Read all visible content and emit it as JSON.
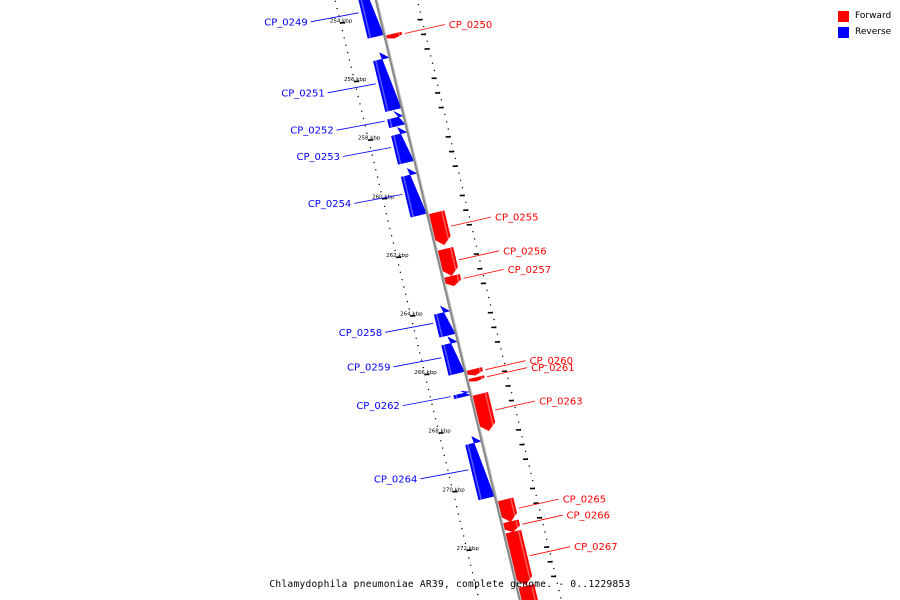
{
  "caption": "Chlamydophila pneumoniae AR39, complete genome. - 0..1229853",
  "legend": [
    {
      "label": "Forward",
      "color": "#ff0000"
    },
    {
      "label": "Reverse",
      "color": "#0000ff"
    }
  ],
  "axis": {
    "start_kbp": 253,
    "end_kbp": 274.3,
    "tick_labels": [
      {
        "kbp": 254,
        "label": "254 kbp"
      },
      {
        "kbp": 256,
        "label": "256 kbp"
      },
      {
        "kbp": 258,
        "label": "258 kbp"
      },
      {
        "kbp": 260,
        "label": "260 kbp"
      },
      {
        "kbp": 262,
        "label": "262 kbp"
      },
      {
        "kbp": 264,
        "label": "264 kbp"
      },
      {
        "kbp": 266,
        "label": "266 kbp"
      },
      {
        "kbp": 268,
        "label": "268 kbp"
      },
      {
        "kbp": 270,
        "label": "270 kbp"
      },
      {
        "kbp": 272,
        "label": "272 kbp"
      }
    ]
  },
  "colors": {
    "forward": "#ff0000",
    "reverse": "#0000ff",
    "backbone": "#888888"
  },
  "genes": [
    {
      "name": "CP_0249",
      "strand": "reverse",
      "start_kbp": 252.9,
      "end_kbp": 254.7
    },
    {
      "name": "CP_0250",
      "strand": "forward",
      "start_kbp": 254.75,
      "end_kbp": 254.9
    },
    {
      "name": "CP_0251",
      "strand": "reverse",
      "start_kbp": 255.25,
      "end_kbp": 257.2
    },
    {
      "name": "CP_0252",
      "strand": "reverse",
      "start_kbp": 257.25,
      "end_kbp": 257.75
    },
    {
      "name": "CP_0253",
      "strand": "reverse",
      "start_kbp": 257.8,
      "end_kbp": 259.0
    },
    {
      "name": "CP_0254",
      "strand": "reverse",
      "start_kbp": 259.2,
      "end_kbp": 260.8
    },
    {
      "name": "CP_0255",
      "strand": "forward",
      "start_kbp": 260.85,
      "end_kbp": 261.95
    },
    {
      "name": "CP_0256",
      "strand": "forward",
      "start_kbp": 262.1,
      "end_kbp": 263.0
    },
    {
      "name": "CP_0257",
      "strand": "forward",
      "start_kbp": 263.02,
      "end_kbp": 263.35
    },
    {
      "name": "CP_0258",
      "strand": "reverse",
      "start_kbp": 263.9,
      "end_kbp": 264.9
    },
    {
      "name": "CP_0259",
      "strand": "reverse",
      "start_kbp": 264.95,
      "end_kbp": 266.2
    },
    {
      "name": "CP_0260",
      "strand": "forward",
      "start_kbp": 266.2,
      "end_kbp": 266.4
    },
    {
      "name": "CP_0261",
      "strand": "forward",
      "start_kbp": 266.48,
      "end_kbp": 266.6
    },
    {
      "name": "CP_0262",
      "strand": "reverse",
      "start_kbp": 266.8,
      "end_kbp": 267.0
    },
    {
      "name": "CP_0263",
      "strand": "forward",
      "start_kbp": 267.05,
      "end_kbp": 268.3
    },
    {
      "name": "CP_0264",
      "strand": "reverse",
      "start_kbp": 268.35,
      "end_kbp": 270.45
    },
    {
      "name": "CP_0265",
      "strand": "forward",
      "start_kbp": 270.65,
      "end_kbp": 271.4
    },
    {
      "name": "CP_0266",
      "strand": "forward",
      "start_kbp": 271.4,
      "end_kbp": 271.75
    },
    {
      "name": "CP_0267",
      "strand": "forward",
      "start_kbp": 271.75,
      "end_kbp": 273.55
    },
    {
      "name": "",
      "strand": "forward",
      "start_kbp": 273.6,
      "end_kbp": 274.5
    }
  ]
}
